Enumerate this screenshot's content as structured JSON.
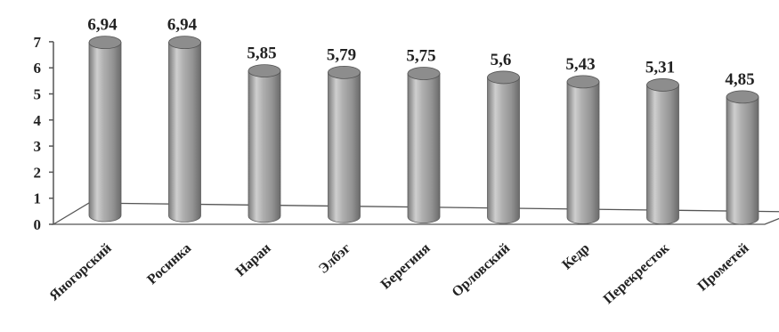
{
  "chart_data": {
    "type": "bar",
    "title": "",
    "xlabel": "",
    "ylabel": "",
    "categories": [
      "Яногорский",
      "Росинка",
      "Наран",
      "Элбэг",
      "Берегиня",
      "Орловский",
      "Кедр",
      "Перекресток",
      "Прометей"
    ],
    "values": [
      6.94,
      6.94,
      5.85,
      5.79,
      5.75,
      5.6,
      5.43,
      5.31,
      4.85
    ],
    "value_labels": [
      "6,94",
      "6,94",
      "5,85",
      "5,79",
      "5,75",
      "5,6",
      "5,43",
      "5,31",
      "4,85"
    ],
    "ylim": [
      0,
      7
    ],
    "yticks": [
      "0",
      "1",
      "2",
      "3",
      "4",
      "5",
      "6",
      "7"
    ],
    "grid": false,
    "legend": "none",
    "style": "3d-cylinder",
    "colors": {
      "bar": "#9c9c9c",
      "bar_highlight": "#d9d9d9",
      "bar_shadow": "#6e6e6e",
      "axis": "#555555"
    }
  }
}
